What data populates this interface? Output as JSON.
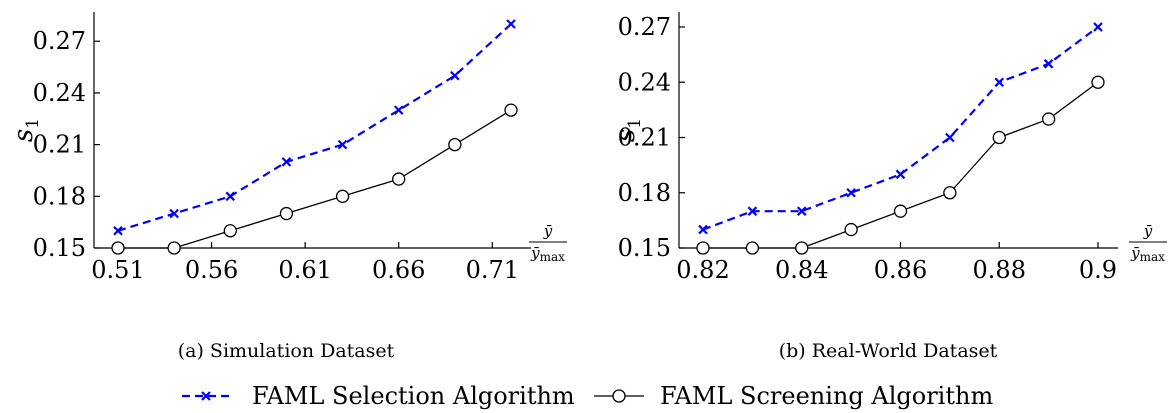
{
  "chart_data": [
    {
      "type": "line",
      "caption": "(a) Simulation Dataset",
      "ylabel": "s1",
      "xlabel": "ȳ / ȳmax",
      "xlim": [
        0.51,
        0.72
      ],
      "ylim": [
        0.15,
        0.28
      ],
      "x_ticks": [
        0.51,
        0.56,
        0.61,
        0.66,
        0.71
      ],
      "x_tick_labels": [
        "0.51",
        "0.56",
        "0.61",
        "0.66",
        "0.71"
      ],
      "y_ticks": [
        0.15,
        0.18,
        0.21,
        0.24,
        0.27
      ],
      "y_tick_labels": [
        "0.15",
        "0.18",
        "0.21",
        "0.24",
        "0.27"
      ],
      "x": [
        0.51,
        0.54,
        0.57,
        0.6,
        0.63,
        0.66,
        0.69,
        0.72
      ],
      "series": [
        {
          "name": "FAML Selection Algorithm",
          "color": "#0000ff",
          "style": "dashed",
          "marker": "x",
          "values": [
            0.16,
            0.17,
            0.18,
            0.2,
            0.21,
            0.23,
            0.25,
            0.28
          ]
        },
        {
          "name": "FAML Screening Algorithm",
          "color": "#000000",
          "style": "solid",
          "marker": "circle",
          "values": [
            0.15,
            0.15,
            0.16,
            0.17,
            0.18,
            0.19,
            0.21,
            0.23
          ]
        }
      ]
    },
    {
      "type": "line",
      "caption": "(b) Real-World Dataset",
      "ylabel": "s1",
      "xlabel": "ȳ / ȳmax",
      "xlim": [
        0.82,
        0.9
      ],
      "ylim": [
        0.15,
        0.27
      ],
      "x_ticks": [
        0.82,
        0.84,
        0.86,
        0.88,
        0.9
      ],
      "x_tick_labels": [
        "0.82",
        "0.84",
        "0.86",
        "0.88",
        "0.9"
      ],
      "y_ticks": [
        0.15,
        0.18,
        0.21,
        0.24,
        0.27
      ],
      "y_tick_labels": [
        "0.15",
        "0.18",
        "0.21",
        "0.24",
        "0.27"
      ],
      "x": [
        0.82,
        0.83,
        0.84,
        0.85,
        0.86,
        0.87,
        0.88,
        0.89,
        0.9
      ],
      "series": [
        {
          "name": "FAML Selection Algorithm",
          "color": "#0000ff",
          "style": "dashed",
          "marker": "x",
          "values": [
            0.16,
            0.17,
            0.17,
            0.18,
            0.19,
            0.21,
            0.24,
            0.25,
            0.27
          ]
        },
        {
          "name": "FAML Screening Algorithm",
          "color": "#000000",
          "style": "solid",
          "marker": "circle",
          "values": [
            0.15,
            0.15,
            0.15,
            0.16,
            0.17,
            0.18,
            0.21,
            0.22,
            0.24
          ]
        }
      ]
    }
  ],
  "legend": {
    "items": [
      {
        "label": "FAML Selection Algorithm",
        "color": "#0000ff",
        "style": "dashed",
        "marker": "x"
      },
      {
        "label": "FAML Screening Algorithm",
        "color": "#000000",
        "style": "solid",
        "marker": "circle"
      }
    ]
  }
}
